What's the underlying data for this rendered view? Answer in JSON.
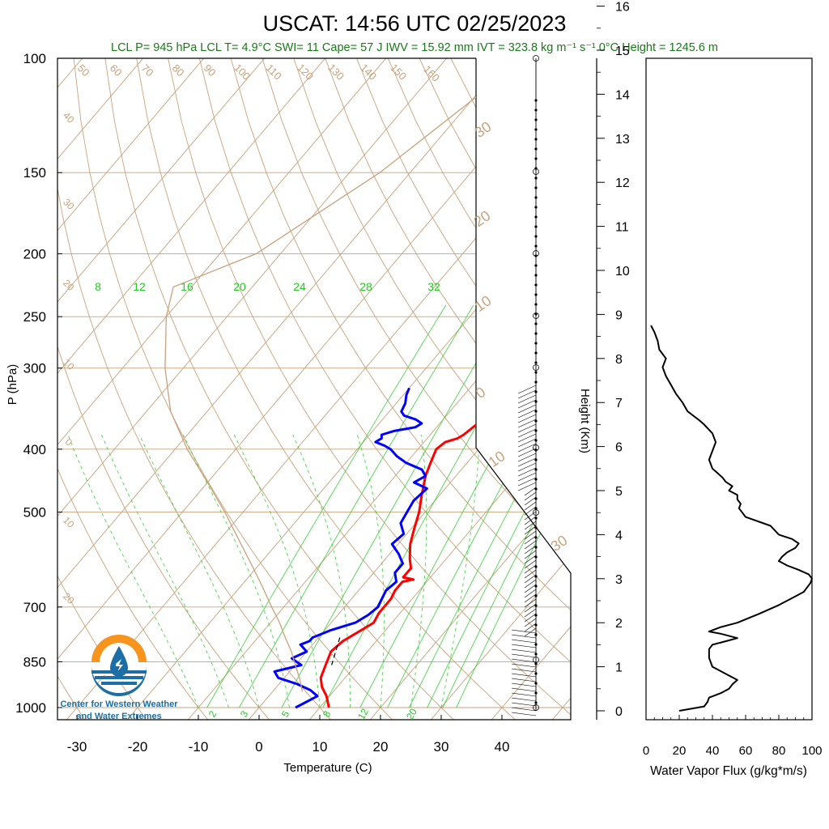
{
  "title": "USCAT: 14:56 UTC 02/25/2023",
  "stats_line": "LCL P= 945 hPa  LCL T= 4.9°C  SWI= 11  Cape= 57 J  IWV = 15.92 mm  IVT = 323.8 kg m⁻¹ s⁻¹  0°C Height = 1245.6 m",
  "logo": {
    "line1": "Center for Western Weather",
    "line2": "and Water Extremes"
  },
  "colors": {
    "title": "#000000",
    "stats": "#1a7a1a",
    "temperature": "#ff0000",
    "dewpoint": "#0000ff",
    "grid": "#c8a27c",
    "mixing_ratio": "#22cc22",
    "parcel": "#000000",
    "flux": "#000000",
    "logo_orange": "#f7941d",
    "logo_blue": "#1c6ea4",
    "logo_text": "#1c6ea4"
  },
  "chart_data": [
    {
      "type": "line",
      "name": "skew-t",
      "xlabel": "Temperature (C)",
      "ylabel": "P (hPa)",
      "xlim": [
        -35,
        47
      ],
      "ylim": [
        1000,
        100
      ],
      "y_scale": "log",
      "x_ticks": [
        -30,
        -20,
        -10,
        0,
        10,
        20,
        30,
        40
      ],
      "y_ticks": [
        100,
        150,
        200,
        250,
        300,
        400,
        500,
        700,
        850,
        1000
      ],
      "isotherm_labels": [
        50,
        60,
        70,
        80,
        90,
        100,
        110,
        120,
        130,
        140,
        150,
        160
      ],
      "left_edge_labels": [
        "40",
        "30",
        "20",
        "10",
        "0",
        "10",
        "20"
      ],
      "right_edge_labels": [
        "30",
        "20",
        "10",
        "0",
        "10",
        "30"
      ],
      "mixing_ratio_top_labels": [
        "8",
        "12",
        "16",
        "20",
        "24",
        "28",
        "32"
      ],
      "mixing_ratio_bottom_labels": [
        "2",
        "3",
        "5",
        "8",
        "12",
        "20"
      ],
      "series": [
        {
          "name": "Temperature",
          "p": [
            1000,
            960,
            930,
            900,
            860,
            820,
            790,
            760,
            740,
            715,
            700,
            680,
            660,
            640,
            635,
            630,
            610,
            590,
            560,
            530,
            500,
            470,
            440,
            420,
            400,
            390,
            385,
            380,
            370,
            360,
            350,
            340,
            330,
            322
          ],
          "t": [
            11.5,
            9.5,
            7.5,
            6.0,
            5.0,
            4.0,
            4.5,
            6.0,
            7.0,
            6.5,
            6.5,
            6.5,
            6.0,
            6.0,
            7.5,
            5.5,
            5.5,
            4.0,
            2.0,
            0.5,
            -1.0,
            -3.0,
            -5.0,
            -6.0,
            -7.0,
            -6.5,
            -5.0,
            -4.5,
            -4.0,
            -3.5,
            -4.0,
            -4.5,
            -5.5,
            -6.5
          ]
        },
        {
          "name": "Dewpoint",
          "p": [
            1000,
            980,
            960,
            940,
            920,
            900,
            880,
            860,
            840,
            820,
            800,
            790,
            780,
            770,
            760,
            740,
            720,
            700,
            680,
            660,
            640,
            620,
            600,
            580,
            560,
            540,
            520,
            500,
            480,
            460,
            450,
            440,
            430,
            420,
            410,
            400,
            395,
            390,
            385,
            380,
            375,
            370,
            365,
            360,
            355,
            350,
            340,
            330,
            322
          ],
          "t": [
            6.0,
            7.0,
            8.0,
            6.0,
            3.0,
            -1.0,
            -2.5,
            1.0,
            -1.5,
            0.0,
            -2.0,
            -1.0,
            -1.0,
            0.0,
            1.0,
            4.0,
            5.0,
            5.5,
            5.0,
            4.5,
            5.0,
            3.5,
            3.5,
            1.5,
            -1.0,
            -0.5,
            -2.5,
            -3.0,
            -3.5,
            -3.0,
            -6.0,
            -5.0,
            -6.5,
            -10.0,
            -12.5,
            -14.5,
            -16.0,
            -18.0,
            -17.5,
            -18.0,
            -16.5,
            -13.5,
            -13.0,
            -14.5,
            -17.0,
            -18.0,
            -18.5,
            -19.5,
            -20.0
          ]
        },
        {
          "name": "Parcel",
          "p": [
            945,
            900,
            860,
            820,
            780,
            740,
            700,
            650,
            600,
            550,
            500,
            450,
            400,
            350,
            300,
            250,
            225,
            200,
            150,
            100
          ],
          "t": [
            4.9,
            2.5,
            0.0,
            -2.5,
            -5.5,
            -8.5,
            -12.0,
            -16.5,
            -21.5,
            -27.0,
            -33.0,
            -40.0,
            -48.0,
            -56.0,
            -63.0,
            -70.0,
            -73.0,
            -64.0,
            -55.0,
            -47.0
          ]
        }
      ]
    },
    {
      "type": "line",
      "name": "water-vapor-flux",
      "xlabel": "Water Vapor Flux (g/kg*m/s)",
      "ylabel": "Height (Km)",
      "xlim": [
        0,
        100
      ],
      "ylim": [
        -0.2,
        16.3
      ],
      "x_ticks": [
        0,
        20,
        40,
        60,
        80,
        100
      ],
      "y_ticks": [
        0,
        1,
        2,
        3,
        4,
        5,
        6,
        7,
        8,
        9,
        10,
        11,
        12,
        13,
        14,
        15,
        16
      ],
      "series": [
        {
          "name": "Flux",
          "h": [
            0.0,
            0.1,
            0.2,
            0.3,
            0.4,
            0.5,
            0.6,
            0.7,
            0.8,
            1.0,
            1.2,
            1.4,
            1.5,
            1.6,
            1.65,
            1.75,
            1.8,
            1.9,
            2.0,
            2.2,
            2.4,
            2.5,
            2.6,
            2.7,
            2.8,
            2.9,
            3.0,
            3.1,
            3.2,
            3.3,
            3.4,
            3.5,
            3.6,
            3.7,
            3.8,
            3.9,
            4.0,
            4.2,
            4.4,
            4.5,
            4.6,
            4.7,
            4.8,
            4.9,
            5.0,
            5.1,
            5.2,
            5.3,
            5.5,
            5.7,
            5.9,
            6.1,
            6.3,
            6.5,
            6.6,
            6.8,
            7.0,
            7.2,
            7.4,
            7.6,
            7.8,
            8.0,
            8.2,
            8.4,
            8.6,
            8.75
          ],
          "f": [
            20,
            35,
            37,
            38,
            45,
            50,
            52,
            55,
            50,
            40,
            38,
            38,
            40,
            50,
            55,
            45,
            38,
            45,
            55,
            68,
            80,
            85,
            90,
            95,
            97,
            99,
            100,
            98,
            92,
            85,
            80,
            82,
            85,
            90,
            92,
            88,
            80,
            75,
            60,
            58,
            56,
            57,
            55,
            55,
            50,
            52,
            48,
            46,
            40,
            38,
            40,
            42,
            40,
            35,
            32,
            25,
            22,
            18,
            15,
            12,
            10,
            12,
            8,
            7,
            5,
            3
          ]
        }
      ]
    }
  ]
}
